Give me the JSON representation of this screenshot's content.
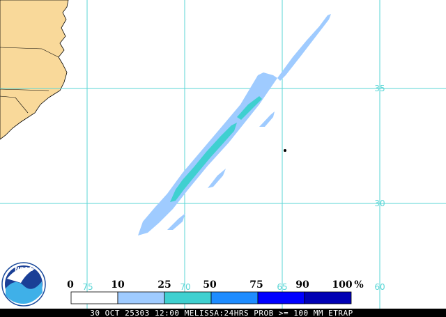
{
  "map": {
    "grid_lines": {
      "longitudes": [
        "75",
        "70",
        "65",
        "60"
      ],
      "latitudes": [
        "35",
        "30"
      ]
    },
    "legend": {
      "thresholds": [
        "0",
        "10",
        "25",
        "50",
        "75",
        "90",
        "100"
      ],
      "unit": "%",
      "colors": [
        "#ffffff",
        "#9fcbff",
        "#3fd0d0",
        "#1e8cff",
        "#0000ff",
        "#0000b4"
      ]
    },
    "footer": "30 OCT 25303 12:00 MELISSA:24HRS PROB >= 100 MM ETRAP",
    "logo_text": "NOAA",
    "colors": {
      "land": "#f9d99a",
      "coast": "#000000",
      "grid": "#5ad6d6",
      "footer_bg": "#000000"
    }
  }
}
